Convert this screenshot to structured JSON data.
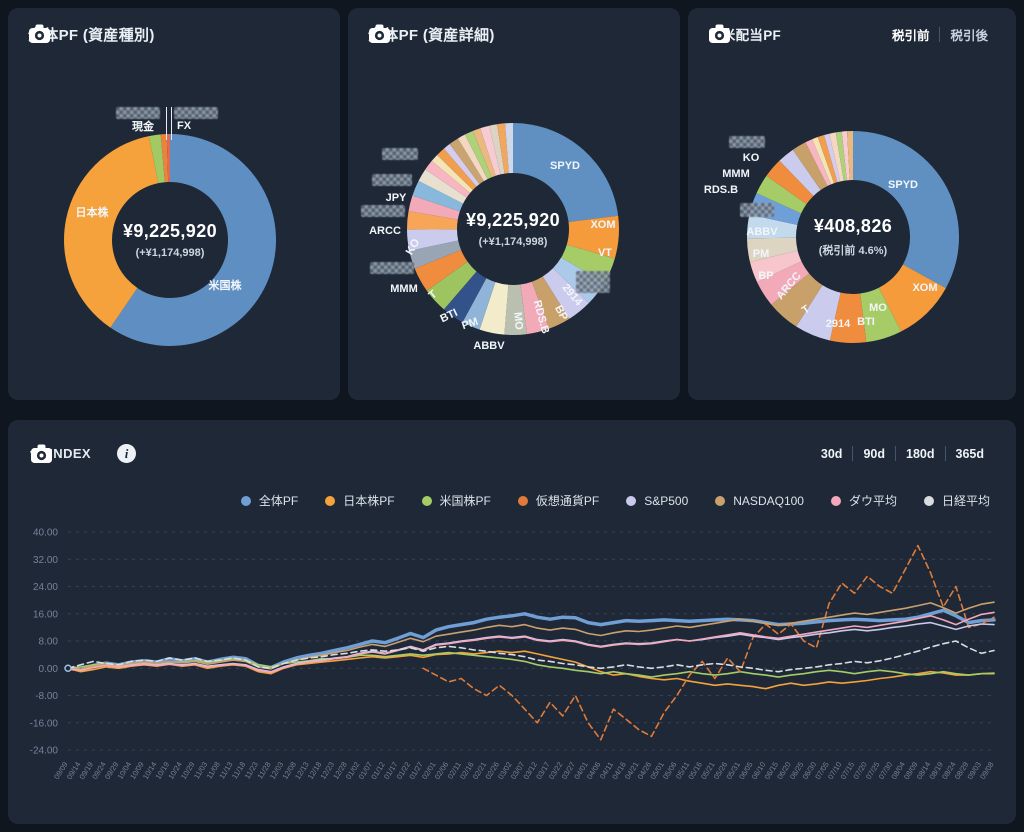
{
  "cards": {
    "asset_type": {
      "title": "全体PF (資産種別)",
      "center_value": "¥9,225,920",
      "center_sub": "(+¥1,174,998)",
      "callouts": [
        {
          "text": "現金"
        },
        {
          "text": "FX"
        },
        {
          "censored": true
        },
        {
          "censored": true
        },
        {
          "text": "日本株"
        },
        {
          "text": "米国株"
        }
      ]
    },
    "asset_detail": {
      "title": "全体PF (資産詳細)",
      "center_value": "¥9,225,920",
      "center_sub": "(+¥1,174,998)",
      "callouts": [
        {
          "text": "SPYD"
        },
        {
          "text": "XOM"
        },
        {
          "text": "VT"
        },
        {
          "censored": true
        },
        {
          "text": "2914"
        },
        {
          "text": "BP"
        },
        {
          "text": "RDS.B"
        },
        {
          "text": "MO"
        },
        {
          "text": "ABBV"
        },
        {
          "text": "PM"
        },
        {
          "text": "BTI"
        },
        {
          "text": "T"
        },
        {
          "text": "MMM"
        },
        {
          "censored": true
        },
        {
          "text": "KO"
        },
        {
          "text": "ARCC"
        },
        {
          "censored": true
        },
        {
          "text": "JPY"
        },
        {
          "censored": true
        },
        {
          "censored": true
        }
      ]
    },
    "dividend": {
      "title": "日米配当PF",
      "toggle_pre": "税引前",
      "toggle_post": "税引後",
      "center_value": "¥408,826",
      "center_sub": "(税引前 4.6%)",
      "callouts": [
        {
          "text": "SPYD"
        },
        {
          "text": "XOM"
        },
        {
          "text": "MO"
        },
        {
          "text": "BTI"
        },
        {
          "text": "2914"
        },
        {
          "text": "T"
        },
        {
          "text": "ARCC"
        },
        {
          "text": "BP"
        },
        {
          "text": "PM"
        },
        {
          "text": "ABBV"
        },
        {
          "censored": true
        },
        {
          "text": "RDS.B"
        },
        {
          "text": "MMM"
        },
        {
          "text": "KO"
        },
        {
          "censored": true
        }
      ]
    }
  },
  "index_panel": {
    "title": "vs INDEX",
    "ranges": [
      "30d",
      "90d",
      "180d",
      "365d"
    ],
    "colors": {
      "background": "#10161f",
      "card": "#1e2836",
      "grid": "#36425a",
      "axis_text": "#76839a"
    }
  },
  "chart_data": [
    {
      "type": "pie",
      "title": "全体PF (資産種別)",
      "center_label": "¥9,225,920 (+¥1,174,998)",
      "labels": [
        "米国株",
        "日本株",
        "現金",
        "FX",
        ""
      ],
      "values": [
        59.5,
        37.3,
        1.8,
        0.9,
        0.5
      ],
      "colors": [
        "#5f8fc2",
        "#f5a13c",
        "#a2c963",
        "#e8843e",
        "#e06a52"
      ]
    },
    {
      "type": "pie",
      "title": "全体PF (資産詳細)",
      "center_label": "¥9,225,920 (+¥1,174,998)",
      "labels": [
        "SPYD",
        "XOM",
        "VT",
        "",
        "2914",
        "BP",
        "RDS.B",
        "MO",
        "ABBV",
        "PM",
        "BTI",
        "T",
        "MMM",
        "",
        "KO",
        "ARCC",
        "",
        "JPY",
        "",
        "",
        "",
        "",
        "",
        "",
        "",
        "",
        "",
        "",
        "",
        "",
        ""
      ],
      "values": [
        23,
        6.5,
        4,
        3.8,
        3.8,
        3.4,
        3.4,
        3.4,
        3.8,
        2.8,
        3.4,
        3.8,
        3.8,
        2.8,
        3.2,
        2.8,
        2.4,
        2.4,
        2,
        1.6,
        1.2,
        1.4,
        1.1,
        1.5,
        1.2,
        1.3,
        1.2,
        1.4,
        1.2,
        1.2,
        1.2
      ],
      "colors": [
        "#6090c2",
        "#f59b3c",
        "#a5cc66",
        "#abc9e9",
        "#cbcbee",
        "#c8a06a",
        "#f2a9b8",
        "#b9c0b0",
        "#f2ecca",
        "#8fb4d8",
        "#33528a",
        "#9dc45f",
        "#f08c3e",
        "#9aa5b3",
        "#cbcbee",
        "#f7a659",
        "#f2a9b8",
        "#88b8dc",
        "#e7e0cf",
        "#f7b6c2",
        "#f3e3b5",
        "#ef9f4d",
        "#d6cdee",
        "#c9a470",
        "#f4d7c2",
        "#aed27a",
        "#eab97f",
        "#f8cbd2",
        "#ddd3c4",
        "#f0a860",
        "#cfd8e8"
      ]
    },
    {
      "type": "pie",
      "title": "日米配当PF",
      "center_label": "¥408,826 (税引前 4.6%)",
      "labels": [
        "SPYD",
        "XOM",
        "MO",
        "BTI",
        "2914",
        "T",
        "ARCC",
        "BP",
        "PM",
        "ABBV",
        "",
        "RDS.B",
        "MMM",
        "KO",
        "",
        "",
        "",
        "",
        "",
        "",
        "",
        "",
        ""
      ],
      "values": [
        33,
        9.5,
        5.5,
        5.5,
        5.5,
        5,
        4,
        3.2,
        3.6,
        3.6,
        3.4,
        3,
        3,
        2.6,
        2.2,
        1.1,
        0.9,
        1,
        0.8,
        1,
        0.9,
        0.8,
        0.9
      ],
      "colors": [
        "#6090c2",
        "#f59b3c",
        "#a5cc66",
        "#f08c3e",
        "#cbcbee",
        "#c8a06a",
        "#f2a9b8",
        "#f7c6cc",
        "#ddd5c2",
        "#c3d9ec",
        "#6f9fd8",
        "#a5cc66",
        "#f08c3e",
        "#cbcbee",
        "#c8a06a",
        "#f7b6c2",
        "#f3e3b5",
        "#ef9f4d",
        "#d6cdee",
        "#f4d7c2",
        "#aed27a",
        "#f8cbd2",
        "#eab97f"
      ]
    },
    {
      "type": "line",
      "title": "vs INDEX",
      "ylim": [
        -24,
        40
      ],
      "yticks": [
        40,
        32,
        24,
        16,
        8,
        0,
        -8,
        -16,
        -24
      ],
      "grid": true,
      "legend_position": "top-right",
      "x": [
        "09/09",
        "09/14",
        "09/19",
        "09/24",
        "09/29",
        "10/04",
        "10/09",
        "10/14",
        "10/19",
        "10/24",
        "10/29",
        "11/03",
        "11/08",
        "11/13",
        "11/18",
        "11/23",
        "11/28",
        "12/03",
        "12/08",
        "12/13",
        "12/18",
        "12/23",
        "12/28",
        "01/02",
        "01/07",
        "01/12",
        "01/17",
        "01/22",
        "01/27",
        "02/01",
        "02/06",
        "02/11",
        "02/16",
        "02/21",
        "02/26",
        "03/02",
        "03/07",
        "03/12",
        "03/17",
        "03/22",
        "03/27",
        "04/01",
        "04/06",
        "04/11",
        "04/16",
        "04/21",
        "04/26",
        "05/01",
        "05/06",
        "05/11",
        "05/16",
        "05/21",
        "05/26",
        "05/31",
        "06/05",
        "06/10",
        "06/15",
        "06/20",
        "06/25",
        "06/30",
        "07/05",
        "07/10",
        "07/15",
        "07/20",
        "07/25",
        "07/30",
        "08/04",
        "08/09",
        "08/14",
        "08/19",
        "08/24",
        "08/29",
        "09/03",
        "09/08"
      ],
      "series": [
        {
          "name": "全体PF",
          "color": "#6f9fd4",
          "width": 3.5,
          "dashed": false,
          "values": [
            0,
            -0.5,
            0.8,
            1.5,
            1,
            1.8,
            2.2,
            1.8,
            2.8,
            2.2,
            2.8,
            1.8,
            2.6,
            3.2,
            2.8,
            0.8,
            0.2,
            1.8,
            3,
            3.8,
            4.4,
            5.2,
            6,
            7,
            8,
            7.5,
            8.8,
            10.2,
            9,
            11.2,
            12.2,
            12.8,
            13.4,
            14.4,
            15,
            15.4,
            16,
            15,
            14.4,
            15,
            14.8,
            13.4,
            12.8,
            13.4,
            14,
            13.8,
            14,
            14.2,
            14,
            13.8,
            14,
            14.2,
            14.4,
            14.2,
            14,
            13.4,
            12.8,
            13,
            13.2,
            13.6,
            14,
            14.2,
            14.4,
            14.2,
            14,
            14.2,
            14.4,
            15,
            16,
            17,
            15.4,
            13.4,
            14,
            14.2
          ]
        },
        {
          "name": "日本株PF",
          "color": "#f5a13c",
          "width": 1.6,
          "dashed": false,
          "values": [
            0,
            -1,
            -0.4,
            0.4,
            0,
            0.6,
            1,
            0.6,
            1.2,
            0.6,
            1,
            0,
            0.6,
            1,
            0.6,
            -1,
            -1.6,
            0,
            1,
            1.4,
            1.8,
            2.2,
            2.6,
            3,
            3.4,
            3,
            3.4,
            3.8,
            3.2,
            4,
            4.2,
            4.6,
            4.2,
            4.6,
            5,
            4.6,
            5,
            4.2,
            3.4,
            2.6,
            1.8,
            0.4,
            -1,
            -2,
            -1.6,
            -2.4,
            -3,
            -3.4,
            -3,
            -3.8,
            -4.4,
            -5,
            -4.6,
            -5,
            -5.4,
            -6,
            -5,
            -4.4,
            -5,
            -4.6,
            -4,
            -4.4,
            -4,
            -3.6,
            -3,
            -2.6,
            -2,
            -1.6,
            -1,
            -1.4,
            -2,
            -2,
            -1.6,
            -1.4
          ]
        },
        {
          "name": "米国株PF",
          "color": "#a5cc66",
          "width": 1.6,
          "dashed": false,
          "values": [
            0,
            0.4,
            1,
            1.4,
            1,
            1.4,
            1.8,
            1.4,
            1.8,
            1.8,
            2.2,
            1.8,
            2.2,
            2.8,
            2.4,
            1,
            0.4,
            1.4,
            1.8,
            2.2,
            2.8,
            2.8,
            3.2,
            3.8,
            3.8,
            3.4,
            3.8,
            4.2,
            3.8,
            4.2,
            4.6,
            4.2,
            3.8,
            3.4,
            3,
            2.6,
            2,
            1,
            0.4,
            0,
            -0.6,
            -1,
            -1.6,
            -1,
            -1.6,
            -2,
            -2.6,
            -2,
            -1.6,
            -1,
            -1.6,
            -2,
            -1.6,
            -1,
            -1.6,
            -2,
            -2.6,
            -2,
            -1.6,
            -1,
            -0.6,
            -1,
            -1.6,
            -1,
            -0.6,
            -1,
            -1.6,
            -2,
            -1.6,
            -1,
            -1.6,
            -2,
            -1.6,
            -1.6
          ]
        },
        {
          "name": "仮想通貨PF",
          "color": "#e07b39",
          "width": 1.6,
          "dashed": true,
          "values": [
            null,
            null,
            null,
            null,
            null,
            null,
            null,
            null,
            null,
            null,
            null,
            null,
            null,
            null,
            null,
            null,
            null,
            null,
            null,
            null,
            null,
            null,
            null,
            null,
            null,
            null,
            null,
            null,
            0,
            -2,
            -4,
            -3,
            -6,
            -8,
            -5,
            -8,
            -12,
            -16,
            -10,
            -14,
            -8,
            -16,
            -21,
            -12,
            -15,
            -18,
            -20,
            -13,
            -8,
            -2,
            2,
            -3,
            3,
            -1,
            9,
            13,
            10,
            13,
            8,
            6,
            19,
            25,
            22,
            27,
            24,
            22,
            29,
            36,
            28,
            18,
            24,
            12,
            13,
            15
          ]
        },
        {
          "name": "S&P500",
          "color": "#c9c9ed",
          "width": 1.6,
          "dashed": false,
          "values": [
            0,
            -0.4,
            0.4,
            1,
            0.6,
            1,
            1.4,
            1,
            1.4,
            1,
            1.4,
            0.6,
            1,
            1.4,
            1,
            -0.4,
            -1,
            0.4,
            1.4,
            2,
            2.4,
            3,
            3.4,
            4.4,
            5,
            4.4,
            5.4,
            6.4,
            5.4,
            7,
            7.4,
            8,
            8.4,
            9,
            9.4,
            9,
            9.4,
            8.4,
            8,
            8.4,
            8,
            7,
            6.4,
            7,
            7.4,
            7.2,
            7.4,
            8,
            8.4,
            8,
            8.4,
            9,
            9.4,
            10,
            9.4,
            9,
            8.4,
            9,
            9.4,
            10,
            10.4,
            11,
            11.4,
            11,
            11.4,
            12,
            12.4,
            13,
            13.4,
            12.4,
            11.4,
            12.4,
            13,
            12.8
          ]
        },
        {
          "name": "NASDAQ100",
          "color": "#c9a06e",
          "width": 1.6,
          "dashed": false,
          "values": [
            0,
            -0.3,
            0.6,
            1.2,
            0.8,
            1.4,
            1.8,
            1.4,
            2,
            1.6,
            2,
            1.2,
            1.8,
            2.4,
            2,
            0.4,
            -0.2,
            1.4,
            2.4,
            3.2,
            3.8,
            4.6,
            5.2,
            6.2,
            7,
            6.4,
            7.6,
            8.8,
            7.8,
            9.4,
            10,
            10.6,
            11.2,
            12,
            12.6,
            12.2,
            12.8,
            11.8,
            11.2,
            11.8,
            11.4,
            10.2,
            9.6,
            10.4,
            11,
            10.8,
            11.2,
            11.8,
            12.4,
            12,
            12.6,
            13.2,
            13.8,
            14.4,
            13.8,
            13.2,
            12.6,
            13.2,
            13.8,
            14.4,
            15,
            15.6,
            16.2,
            15.8,
            16.4,
            17,
            17.6,
            18.4,
            19.2,
            17.8,
            16.2,
            17.6,
            18.8,
            19.4
          ]
        },
        {
          "name": "ダウ平均",
          "color": "#f4a8bc",
          "width": 1.6,
          "dashed": false,
          "values": [
            0,
            -0.6,
            0.2,
            0.8,
            0.4,
            0.8,
            1.2,
            0.8,
            1.2,
            0.8,
            1.2,
            0.4,
            0.8,
            1.2,
            0.8,
            -0.6,
            -1.2,
            0.2,
            1.2,
            1.8,
            2.2,
            2.8,
            3.2,
            4.2,
            4.8,
            4.2,
            5.2,
            6.2,
            5.2,
            6.8,
            7.2,
            7.8,
            8.2,
            8.8,
            9.2,
            8.8,
            9.2,
            8.2,
            7.8,
            8.2,
            7.8,
            6.8,
            6.2,
            6.8,
            7.2,
            7,
            7.2,
            7.8,
            8.4,
            8,
            8.6,
            9.2,
            9.8,
            10.4,
            9.8,
            9.2,
            8.8,
            9.4,
            10,
            10.6,
            11.2,
            11.8,
            12.4,
            12,
            12.6,
            13.2,
            13.8,
            14.6,
            15.4,
            14.2,
            12.8,
            14.4,
            15.8,
            16.4
          ]
        },
        {
          "name": "日経平均",
          "color": "#d9dde2",
          "width": 1.6,
          "dashed": true,
          "values": [
            0,
            1,
            2,
            1.4,
            1,
            2,
            2.4,
            2,
            3,
            2.4,
            3,
            2,
            2.4,
            3,
            2.4,
            0.4,
            0,
            1.4,
            2.4,
            3,
            3.4,
            4,
            4.4,
            5,
            5.4,
            5,
            5.4,
            6,
            5,
            6,
            6.4,
            6,
            5.4,
            5,
            4.4,
            4,
            3.4,
            2.4,
            2,
            1.4,
            1,
            0.4,
            0,
            0.4,
            1,
            0.4,
            0,
            0.4,
            1,
            0.4,
            1,
            1.4,
            1,
            0.4,
            0,
            -0.6,
            -1,
            -0.4,
            0,
            0.4,
            1,
            1.4,
            2,
            1.6,
            2.2,
            3,
            4,
            5,
            6.2,
            7.2,
            8,
            6,
            4.4,
            5.2
          ]
        }
      ]
    }
  ]
}
